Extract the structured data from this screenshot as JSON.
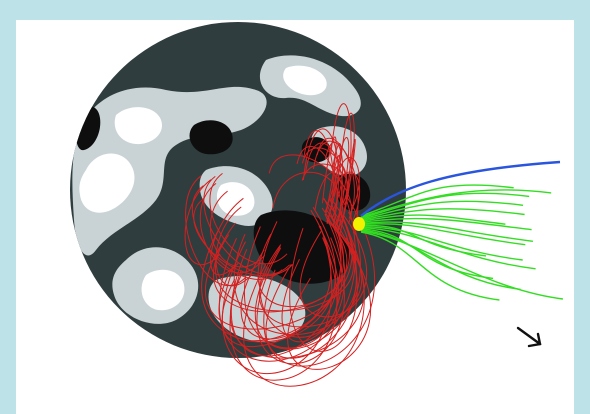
{
  "figure": {
    "description_free": true,
    "colors": {
      "frame": "#bde3e8",
      "panel": "#ffffff",
      "sphere_dark": "#2f3d3f",
      "sphere_light": "#c9d3d5",
      "sphere_white": "#ffffff",
      "sphere_black": "#0e0e0e",
      "closed_field_lines": "#d42020",
      "open_field_lines": "#33dd22",
      "open_field_line_highlight": "#2a55dd",
      "footpoint_marker": "#f2f200",
      "arrow": "#111111"
    },
    "icons": {
      "arrow": "arrow-down-right-icon"
    }
  }
}
